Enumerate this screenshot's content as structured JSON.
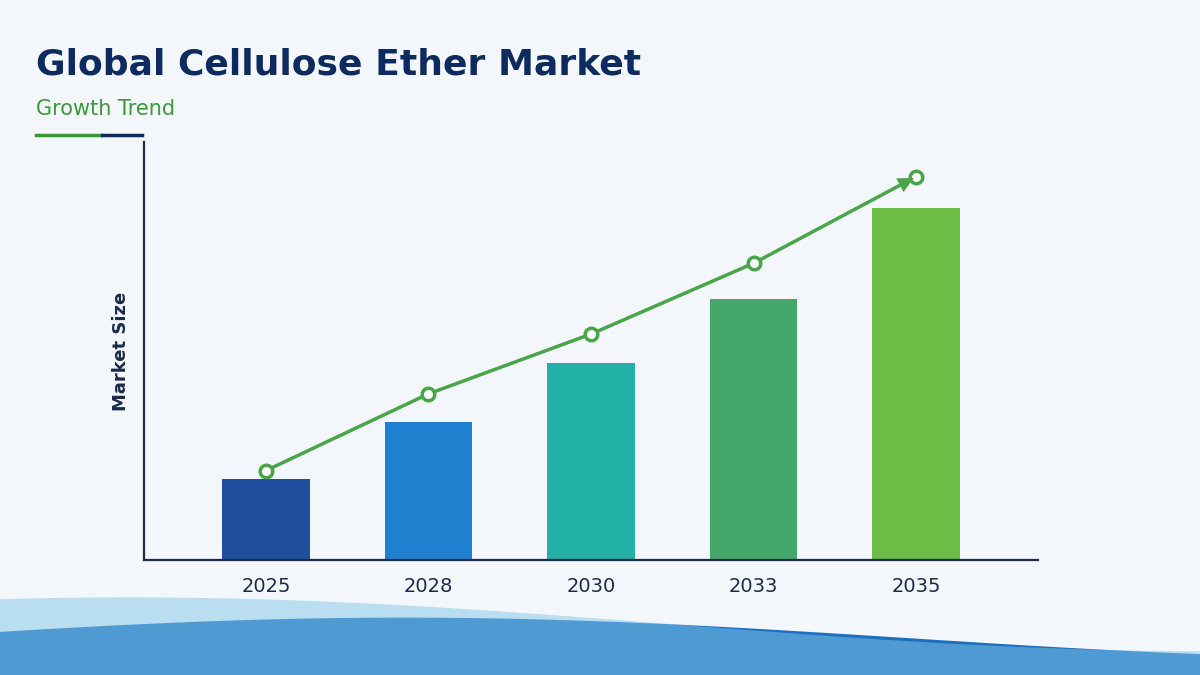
{
  "chart_data": {
    "type": "bar",
    "title": "Global Cellulose Ether Market",
    "subtitle": "Growth Trend",
    "y_label": "Market Size",
    "categories": [
      "2025",
      "2028",
      "2030",
      "2033",
      "2035"
    ],
    "ylim": [
      0,
      420
    ],
    "tick_labels": "x",
    "grid": false,
    "series": [
      {
        "type": "bar",
        "values": [
          82,
          139,
          198,
          262,
          354
        ],
        "colors": [
          "#1f4f9e",
          "#1f80d0",
          "#22b0a6",
          "#45a86a",
          "#6cbd45"
        ]
      },
      {
        "type": "line",
        "color": "#4aa54a",
        "marker": "o",
        "line_style": "solid",
        "values": [
          90,
          167,
          227,
          298,
          385
        ]
      }
    ]
  }
}
